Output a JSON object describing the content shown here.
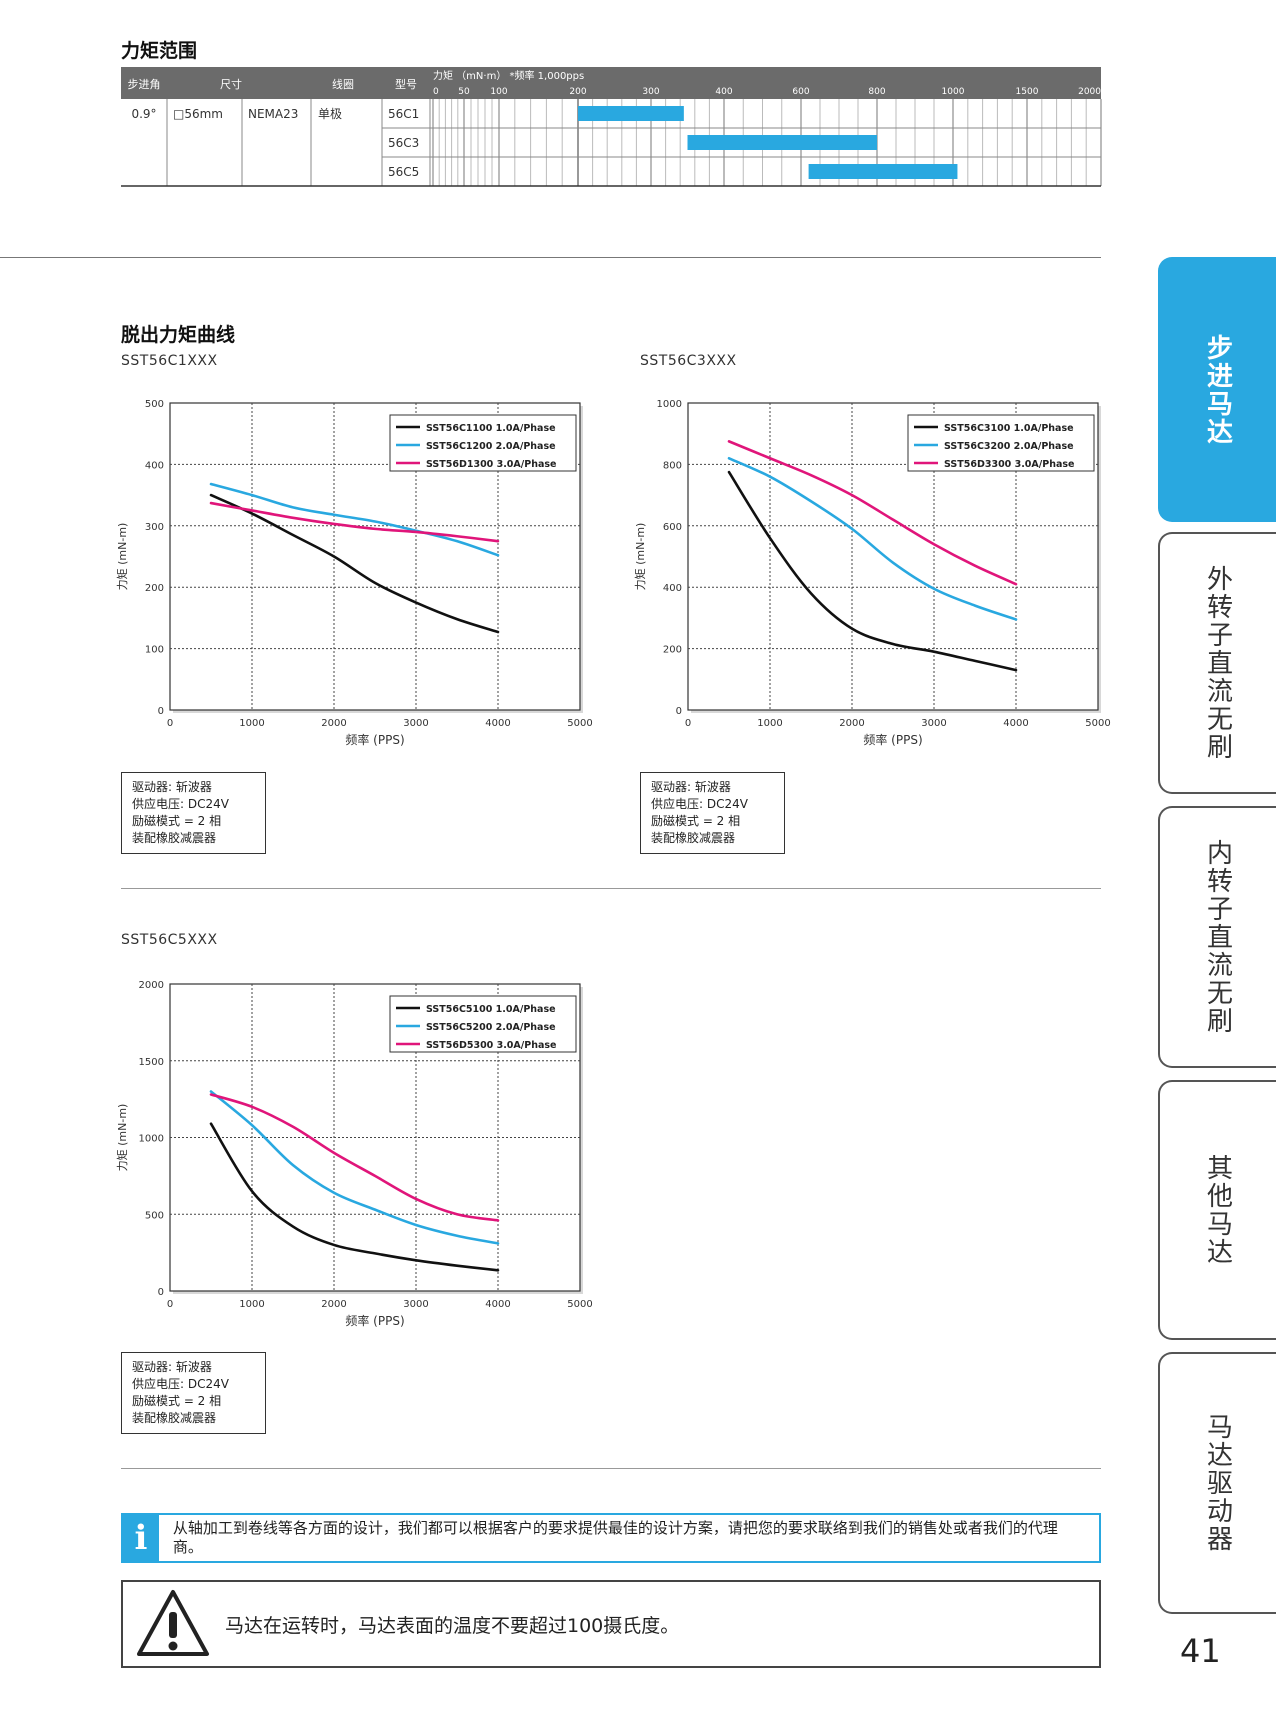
{
  "range_section": {
    "title": "力矩范围",
    "headers": [
      "步进角",
      "尺寸",
      "",
      "线圈",
      "型号"
    ],
    "torque_header": "力矩 （mN·m） *频率 1,000pps",
    "scale_ticks": [
      "0",
      "50",
      "100",
      "200",
      "300",
      "400",
      "600",
      "800",
      "1000",
      "1500",
      "2000"
    ],
    "row": {
      "step_angle": "0.9°",
      "size": "□56mm",
      "nema": "NEMA23",
      "coil": "单极"
    },
    "models": [
      {
        "name": "56C1",
        "min": 200,
        "max": 345
      },
      {
        "name": "56C3",
        "min": 350,
        "max": 800
      },
      {
        "name": "56C5",
        "min": 620,
        "max": 1030
      }
    ],
    "bar_color": "#29a8e0"
  },
  "pullout_section": {
    "title": "脱出力矩曲线"
  },
  "driver_note": [
    "驱动器: 斩波器",
    "供应电压: DC24V",
    "励磁模式 = 2 相",
    "装配橡胶减震器"
  ],
  "chart_data": [
    {
      "type": "line",
      "title": "SST56C1XXX",
      "xlabel": "频率 (PPS)",
      "ylabel": "力矩 (mN-m)",
      "xlim": [
        0,
        5000
      ],
      "ylim": [
        0,
        500
      ],
      "xticks": [
        0,
        1000,
        2000,
        3000,
        4000,
        5000
      ],
      "yticks": [
        0,
        100,
        200,
        300,
        400,
        500
      ],
      "grid": true,
      "legend": "top-right",
      "series": [
        {
          "name": "SST56C1100  1.0A/Phase",
          "color": "#111111",
          "x": [
            500,
            1000,
            1500,
            2000,
            2500,
            3000,
            3500,
            4000
          ],
          "y": [
            350,
            320,
            285,
            250,
            207,
            175,
            148,
            127
          ]
        },
        {
          "name": "SST56C1200  2.0A/Phase",
          "color": "#29a8e0",
          "x": [
            500,
            1000,
            1500,
            2000,
            2500,
            3000,
            3500,
            4000
          ],
          "y": [
            368,
            350,
            330,
            318,
            307,
            292,
            275,
            252
          ]
        },
        {
          "name": "SST56D1300  3.0A/Phase",
          "color": "#e0157a",
          "x": [
            500,
            1000,
            1500,
            2000,
            2500,
            3000,
            3500,
            4000
          ],
          "y": [
            337,
            325,
            313,
            303,
            295,
            290,
            283,
            275
          ]
        }
      ]
    },
    {
      "type": "line",
      "title": "SST56C3XXX",
      "xlabel": "频率 (PPS)",
      "ylabel": "力矩 (mN-m)",
      "xlim": [
        0,
        5000
      ],
      "ylim": [
        0,
        1000
      ],
      "xticks": [
        0,
        1000,
        2000,
        3000,
        4000,
        5000
      ],
      "yticks": [
        0,
        200,
        400,
        600,
        800,
        1000
      ],
      "grid": true,
      "legend": "top-right",
      "series": [
        {
          "name": "SST56C3100  1.0A/Phase",
          "color": "#111111",
          "x": [
            500,
            1000,
            1500,
            2000,
            2500,
            3000,
            3500,
            4000
          ],
          "y": [
            775,
            560,
            380,
            265,
            215,
            190,
            160,
            130
          ]
        },
        {
          "name": "SST56C3200  2.0A/Phase",
          "color": "#29a8e0",
          "x": [
            500,
            1000,
            1500,
            2000,
            2500,
            3000,
            3500,
            4000
          ],
          "y": [
            820,
            760,
            680,
            590,
            480,
            395,
            340,
            295
          ]
        },
        {
          "name": "SST56D3300  3.0A/Phase",
          "color": "#e0157a",
          "x": [
            500,
            1000,
            1500,
            2000,
            2500,
            3000,
            3500,
            4000
          ],
          "y": [
            875,
            820,
            765,
            700,
            620,
            540,
            470,
            410
          ]
        }
      ]
    },
    {
      "type": "line",
      "title": "SST56C5XXX",
      "xlabel": "频率 (PPS)",
      "ylabel": "力矩 (mN-m)",
      "xlim": [
        0,
        5000
      ],
      "ylim": [
        0,
        2000
      ],
      "xticks": [
        0,
        1000,
        2000,
        3000,
        4000,
        5000
      ],
      "yticks": [
        0,
        500,
        1000,
        1500,
        2000
      ],
      "grid": true,
      "legend": "top-right",
      "series": [
        {
          "name": "SST56C5100  1.0A/Phase",
          "color": "#111111",
          "x": [
            500,
            1000,
            1500,
            2000,
            2500,
            3000,
            3500,
            4000
          ],
          "y": [
            1090,
            650,
            420,
            300,
            245,
            200,
            165,
            135
          ]
        },
        {
          "name": "SST56C5200  2.0A/Phase",
          "color": "#29a8e0",
          "x": [
            500,
            1000,
            1500,
            2000,
            2500,
            3000,
            3500,
            4000
          ],
          "y": [
            1300,
            1080,
            820,
            640,
            530,
            430,
            360,
            310
          ]
        },
        {
          "name": "SST56D5300  3.0A/Phase",
          "color": "#e0157a",
          "x": [
            500,
            1000,
            1500,
            2000,
            2500,
            3000,
            3500,
            4000
          ],
          "y": [
            1280,
            1200,
            1070,
            900,
            750,
            600,
            500,
            460
          ]
        }
      ]
    }
  ],
  "side_tabs": [
    "步进马达",
    "外转子直流无刷",
    "内转子直流无刷",
    "其他马达",
    "马达驱动器"
  ],
  "info": {
    "icon": "i",
    "text": "从轴加工到卷线等各方面的设计，我们都可以根据客户的要求提供最佳的设计方案，请把您的要求联络到我们的销售处或者我们的代理商。"
  },
  "warning": {
    "text": "马达在运转时，马达表面的温度不要超过100摄氏度。"
  },
  "page_number": "41",
  "colors": {
    "accent": "#29a8e0",
    "magenta": "#e0157a",
    "black": "#111111"
  }
}
